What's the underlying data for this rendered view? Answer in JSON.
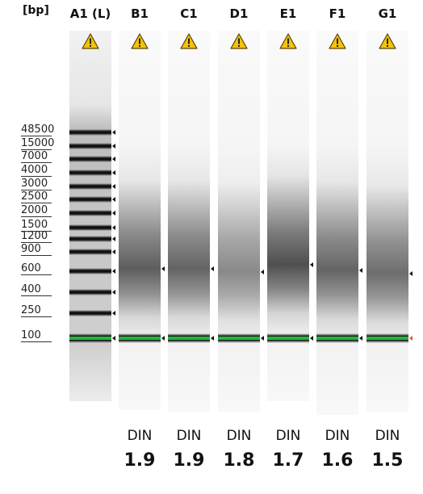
{
  "unit_label": "[bp]",
  "ladder": {
    "label": "A1 (L)",
    "sizes": [
      "48500",
      "15000",
      "7000",
      "4000",
      "3000",
      "2500",
      "2000",
      "1500",
      "1200",
      "900",
      "600",
      "400",
      "250",
      "100"
    ]
  },
  "samples": [
    {
      "label": "B1",
      "din_label": "DIN",
      "din": "1.9"
    },
    {
      "label": "C1",
      "din_label": "DIN",
      "din": "1.9"
    },
    {
      "label": "D1",
      "din_label": "DIN",
      "din": "1.8"
    },
    {
      "label": "E1",
      "din_label": "DIN",
      "din": "1.7"
    },
    {
      "label": "F1",
      "din_label": "DIN",
      "din": "1.6"
    },
    {
      "label": "G1",
      "din_label": "DIN",
      "din": "1.5"
    }
  ],
  "icons": {
    "warning": "warning-icon",
    "size_marker": "arrow-left-icon"
  },
  "colors": {
    "lower_marker": "#1fb83a",
    "band": "#111111",
    "warning": "#f4c20d"
  }
}
